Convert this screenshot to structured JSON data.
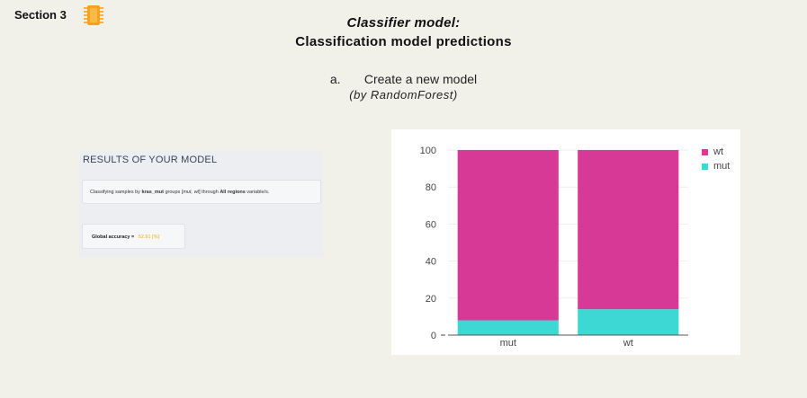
{
  "header": {
    "section_label": "Section 3",
    "icon": "chip-icon",
    "title_line1": "Classifier model:",
    "title_line2": "Classification model predictions",
    "step_marker": "a.",
    "step_text": "Create a new model",
    "step_subtext": "(by RandomForest)"
  },
  "results": {
    "title": "RESULTS OF YOUR MODEL",
    "desc_prefix": "Classifying samples by",
    "desc_variable": "kras_mut",
    "desc_groups_prefix": "groups [",
    "desc_groups": "mut, wt",
    "desc_groups_suffix": "] through",
    "desc_regions": "All regions",
    "desc_suffix": "variable/s.",
    "accuracy_label": "Global accuracy =",
    "accuracy_value": "52.91 [%]"
  },
  "colors": {
    "wt": "#d63a96",
    "mut": "#3ed8d4",
    "accent": "#f5a623"
  },
  "chart_data": {
    "type": "bar",
    "stacked": true,
    "categories": [
      "mut",
      "wt"
    ],
    "series": [
      {
        "name": "mut",
        "values": [
          8,
          14
        ]
      },
      {
        "name": "wt",
        "values": [
          92,
          86
        ]
      }
    ],
    "yticks": [
      0,
      20,
      40,
      60,
      80,
      100
    ],
    "ylim": [
      0,
      100
    ],
    "grid": true,
    "legend": "top-right"
  }
}
